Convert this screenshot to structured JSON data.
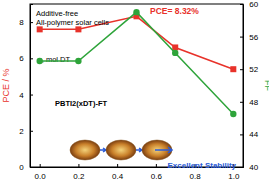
{
  "chart_data": {
    "type": "line",
    "x_label": "x, mol DT",
    "y_label": "PCE / %",
    "y2_label": "FF",
    "x": [
      0,
      0.2,
      0.5,
      0.7,
      1.0
    ],
    "series": [
      {
        "color": "#e8322a",
        "marker": "square",
        "values": [
          7.6,
          7.6,
          8.32,
          6.6,
          5.4
        ]
      },
      {
        "color": "#2ea43a",
        "marker": "circle",
        "axis": "y2",
        "values": [
          53,
          53,
          59,
          54,
          46.5
        ]
      }
    ],
    "xlim": [
      -0.05,
      1.05
    ],
    "xticks": [
      {
        "value": 0,
        "label": "0.0"
      },
      {
        "value": 0.2,
        "label": "0.2"
      },
      {
        "value": 0.4,
        "label": "0.4"
      },
      {
        "value": 0.6,
        "label": "0.6"
      },
      {
        "value": 0.8,
        "label": "0.8"
      },
      {
        "value": 1.0,
        "label": "1.0"
      }
    ],
    "ylim": [
      0,
      9
    ],
    "yticks": [
      0,
      2,
      4,
      6,
      8
    ],
    "y2lim": [
      40,
      60
    ],
    "y2ticks": [
      40,
      44,
      48,
      52,
      56,
      60
    ],
    "annotations": [
      "Additive-free",
      "All-polymer solar cells",
      "PCE= 8.32%",
      "PBTI2(xDT)-FT",
      "Excellent Stability"
    ]
  }
}
